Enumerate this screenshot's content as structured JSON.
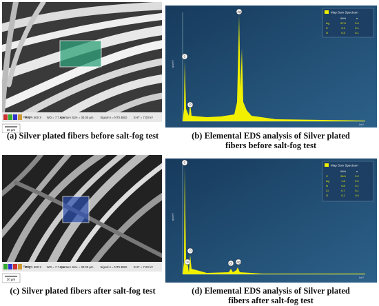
{
  "panels": [
    {
      "caption": "(a) Silver plated fibers before salt-fog test",
      "info": [
        "Mag = 500 X",
        "WD = 7.7 mm",
        "Aperture Size = 30.00 µm",
        "Signal A = NTS BSD",
        "EHT = 7.00 kV"
      ],
      "scale": "20 µm",
      "tag": "Electron"
    },
    {
      "caption": "(b) Elemental EDS analysis of Silver plated fibers before salt-fog test",
      "legend": "Map Sum Spectrum",
      "y_label": "cps/eV",
      "x_label": "keV",
      "table_header": [
        "Wt%",
        "σ"
      ],
      "table_rows": [
        [
          "Ag",
          "97.5",
          "0.4"
        ],
        [
          "C",
          "2.1",
          "0.1"
        ],
        [
          "O",
          "0.3",
          "0.1"
        ]
      ],
      "peaks": [
        "Ag",
        "C",
        "O"
      ]
    },
    {
      "caption": "(c) Silver plated fibers after salt-fog test",
      "info": [
        "Mag = 500 X",
        "WD = 7.7 mm",
        "Aperture Size = 30.00 µm",
        "Signal A = NTS BSD",
        "EHT = 7.00 kV"
      ],
      "scale": "20 µm",
      "tag": "Electron"
    },
    {
      "caption": "(d) Elemental EDS analysis of Silver plated fibers after salt-fog test",
      "legend": "Map Sum Spectrum",
      "y_label": "cps/eV",
      "x_label": "keV",
      "table_header": [
        "Wt%",
        "σ"
      ],
      "table_rows": [
        [
          "C",
          "96.6",
          "0.2"
        ],
        [
          "Ag",
          "1.6",
          "0.2"
        ],
        [
          "N",
          "0.8",
          "0.1"
        ],
        [
          "Cl",
          "0.7",
          "0.1"
        ],
        [
          "O",
          "0.1",
          "0.0"
        ]
      ],
      "peaks": [
        "C",
        "O",
        "N",
        "Cl",
        "Ag"
      ]
    }
  ]
}
